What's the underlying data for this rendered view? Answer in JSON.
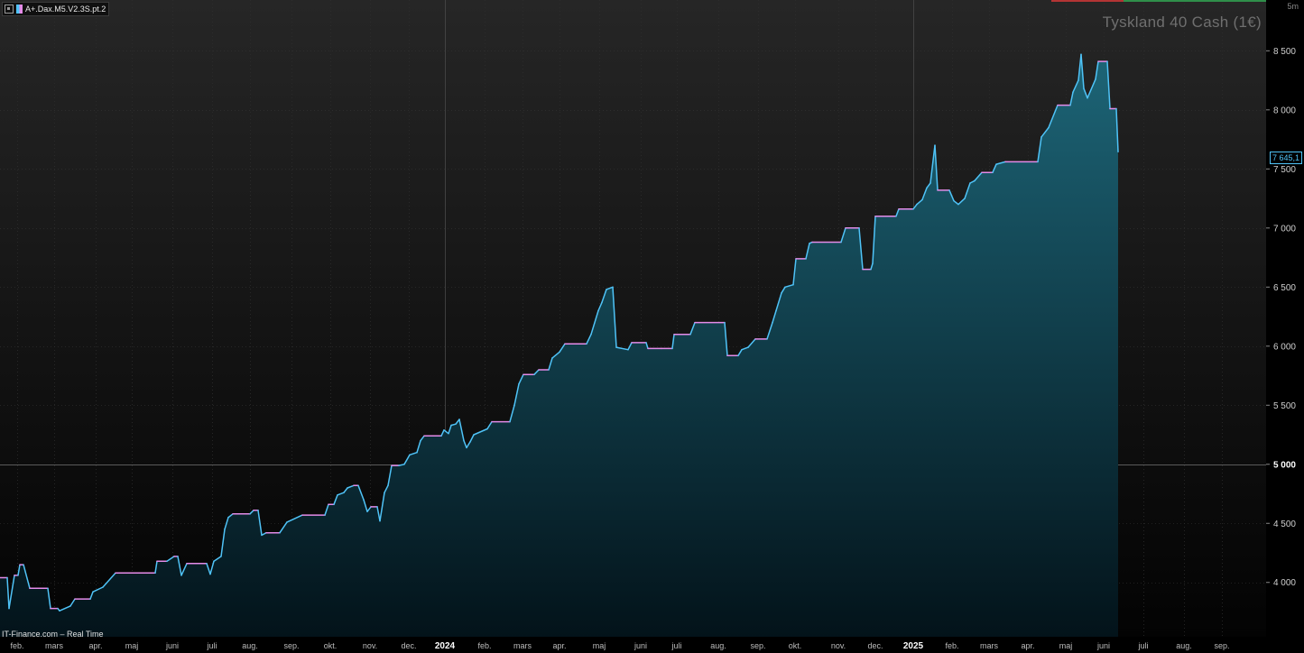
{
  "window": {
    "indicator_label": "A+.Dax.M5.V2.3S.pt.2",
    "instrument_title": "Tyskland 40 Cash (1€)",
    "timeframe": "5m",
    "source_label": "IT-Finance.com – Real Time",
    "last_price_label": "7 645,1",
    "colors": {
      "up": "#4fc3f7",
      "down": "#e48be8",
      "area_top": "#1d6577",
      "area_bottom": "#03131a",
      "background": "#1f1f1f"
    }
  },
  "chart_data": {
    "type": "line",
    "series": [
      {
        "values": [
          [
            0,
            4040
          ],
          [
            8,
            4040
          ],
          [
            10,
            3780
          ],
          [
            16,
            4060
          ],
          [
            20,
            4060
          ],
          [
            22,
            4150
          ],
          [
            26,
            4150
          ],
          [
            33,
            3950
          ],
          [
            45,
            3950
          ],
          [
            53,
            3950
          ],
          [
            56,
            3780
          ],
          [
            64,
            3780
          ],
          [
            66,
            3760
          ],
          [
            78,
            3800
          ],
          [
            83,
            3860
          ],
          [
            100,
            3860
          ],
          [
            103,
            3920
          ],
          [
            114,
            3960
          ],
          [
            128,
            4080
          ],
          [
            150,
            4080
          ],
          [
            172,
            4080
          ],
          [
            174,
            4180
          ],
          [
            185,
            4180
          ],
          [
            193,
            4220
          ],
          [
            197,
            4220
          ],
          [
            201,
            4060
          ],
          [
            207,
            4160
          ],
          [
            218,
            4160
          ],
          [
            229,
            4160
          ],
          [
            233,
            4070
          ],
          [
            237,
            4180
          ],
          [
            245,
            4220
          ],
          [
            249,
            4450
          ],
          [
            253,
            4550
          ],
          [
            258,
            4580
          ],
          [
            263,
            4580
          ],
          [
            277,
            4580
          ],
          [
            281,
            4610
          ],
          [
            286,
            4610
          ],
          [
            290,
            4400
          ],
          [
            295,
            4420
          ],
          [
            310,
            4420
          ],
          [
            318,
            4510
          ],
          [
            335,
            4570
          ],
          [
            360,
            4570
          ],
          [
            364,
            4660
          ],
          [
            370,
            4660
          ],
          [
            374,
            4740
          ],
          [
            381,
            4760
          ],
          [
            385,
            4800
          ],
          [
            392,
            4820
          ],
          [
            397,
            4820
          ],
          [
            403,
            4700
          ],
          [
            407,
            4600
          ],
          [
            411,
            4640
          ],
          [
            418,
            4640
          ],
          [
            421,
            4520
          ],
          [
            426,
            4760
          ],
          [
            430,
            4820
          ],
          [
            434,
            4990
          ],
          [
            442,
            4990
          ],
          [
            448,
            5000
          ],
          [
            454,
            5080
          ],
          [
            462,
            5100
          ],
          [
            466,
            5200
          ],
          [
            470,
            5240
          ],
          [
            489,
            5240
          ],
          [
            492,
            5290
          ],
          [
            497,
            5260
          ],
          [
            500,
            5330
          ],
          [
            505,
            5340
          ],
          [
            509,
            5380
          ],
          [
            514,
            5200
          ],
          [
            517,
            5140
          ],
          [
            521,
            5190
          ],
          [
            525,
            5250
          ],
          [
            540,
            5300
          ],
          [
            545,
            5360
          ],
          [
            565,
            5360
          ],
          [
            570,
            5500
          ],
          [
            575,
            5680
          ],
          [
            580,
            5760
          ],
          [
            592,
            5760
          ],
          [
            597,
            5800
          ],
          [
            608,
            5800
          ],
          [
            612,
            5900
          ],
          [
            620,
            5950
          ],
          [
            626,
            6020
          ],
          [
            650,
            6020
          ],
          [
            655,
            6100
          ],
          [
            663,
            6300
          ],
          [
            667,
            6370
          ],
          [
            672,
            6480
          ],
          [
            679,
            6500
          ],
          [
            683,
            5990
          ],
          [
            696,
            5970
          ],
          [
            700,
            6030
          ],
          [
            716,
            6030
          ],
          [
            718,
            5980
          ],
          [
            733,
            5980
          ],
          [
            745,
            5980
          ],
          [
            747,
            6100
          ],
          [
            765,
            6100
          ],
          [
            770,
            6200
          ],
          [
            803,
            6200
          ],
          [
            806,
            5920
          ],
          [
            818,
            5920
          ],
          [
            822,
            5970
          ],
          [
            829,
            5990
          ],
          [
            837,
            6060
          ],
          [
            850,
            6060
          ],
          [
            856,
            6200
          ],
          [
            860,
            6300
          ],
          [
            866,
            6450
          ],
          [
            870,
            6500
          ],
          [
            879,
            6520
          ],
          [
            882,
            6740
          ],
          [
            893,
            6740
          ],
          [
            897,
            6870
          ],
          [
            900,
            6880
          ],
          [
            932,
            6880
          ],
          [
            937,
            7000
          ],
          [
            952,
            7000
          ],
          [
            956,
            6650
          ],
          [
            965,
            6650
          ],
          [
            967,
            6700
          ],
          [
            970,
            7100
          ],
          [
            993,
            7100
          ],
          [
            996,
            7160
          ],
          [
            1012,
            7160
          ],
          [
            1016,
            7200
          ],
          [
            1022,
            7240
          ],
          [
            1027,
            7340
          ],
          [
            1031,
            7380
          ],
          [
            1036,
            7700
          ],
          [
            1039,
            7320
          ],
          [
            1052,
            7320
          ],
          [
            1057,
            7230
          ],
          [
            1062,
            7200
          ],
          [
            1069,
            7250
          ],
          [
            1075,
            7380
          ],
          [
            1080,
            7400
          ],
          [
            1088,
            7470
          ],
          [
            1100,
            7470
          ],
          [
            1104,
            7540
          ],
          [
            1114,
            7560
          ],
          [
            1150,
            7560
          ],
          [
            1154,
            7770
          ],
          [
            1162,
            7850
          ],
          [
            1172,
            8040
          ],
          [
            1186,
            8040
          ],
          [
            1189,
            8150
          ],
          [
            1195,
            8250
          ],
          [
            1198,
            8470
          ],
          [
            1201,
            8180
          ],
          [
            1205,
            8100
          ],
          [
            1214,
            8260
          ],
          [
            1217,
            8410
          ],
          [
            1227,
            8410
          ],
          [
            1230,
            8010
          ],
          [
            1237,
            8010
          ],
          [
            1239,
            7645
          ]
        ]
      }
    ],
    "x_tick_labels": [
      "feb.",
      "mars",
      "apr.",
      "maj",
      "juni",
      "juli",
      "aug.",
      "sep.",
      "okt.",
      "nov.",
      "dec.",
      "2024",
      "feb.",
      "mars",
      "apr.",
      "maj",
      "juni",
      "juli",
      "aug.",
      "sep.",
      "okt.",
      "nov.",
      "dec.",
      "2025",
      "feb.",
      "mars",
      "apr.",
      "maj",
      "juni",
      "juli",
      "aug.",
      "sep."
    ],
    "y_tick_labels": [
      "8 500",
      "8 000",
      "7 500",
      "7 000",
      "6 500",
      "6 000",
      "5 500",
      "5 000",
      "4 500",
      "4 000"
    ],
    "y_ticks": [
      8500,
      8000,
      7500,
      7000,
      6500,
      6000,
      5500,
      5000,
      4500,
      4000
    ],
    "ylim": [
      3540,
      8930
    ],
    "last_value": 7645.1,
    "grid": true
  }
}
